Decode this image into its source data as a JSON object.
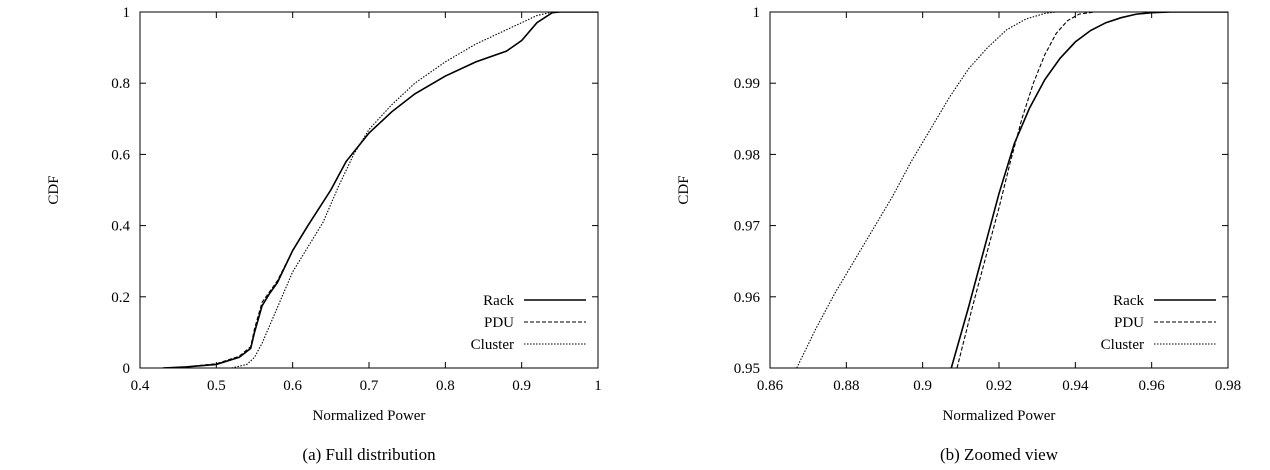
{
  "chart_data": [
    {
      "type": "line",
      "caption": "(a) Full distribution",
      "xlabel": "Normalized Power",
      "ylabel": "CDF",
      "xlim": [
        0.4,
        1.0
      ],
      "ylim": [
        0,
        1
      ],
      "xticks": [
        0.4,
        0.5,
        0.6,
        0.7,
        0.8,
        0.9,
        1.0
      ],
      "xtick_labels": [
        "0.4",
        "0.5",
        "0.6",
        "0.7",
        "0.8",
        "0.9",
        "1"
      ],
      "yticks": [
        0,
        0.2,
        0.4,
        0.6,
        0.8,
        1.0
      ],
      "ytick_labels": [
        "0",
        "0.2",
        "0.4",
        "0.6",
        "0.8",
        "1"
      ],
      "grid": false,
      "legend_position": "bottom-right",
      "series": [
        {
          "name": "Rack",
          "style": "solid",
          "x": [
            0.43,
            0.46,
            0.5,
            0.53,
            0.545,
            0.55,
            0.56,
            0.57,
            0.58,
            0.6,
            0.62,
            0.65,
            0.67,
            0.7,
            0.73,
            0.76,
            0.8,
            0.84,
            0.88,
            0.9,
            0.92,
            0.94,
            0.95,
            1.0
          ],
          "y": [
            0.0,
            0.003,
            0.01,
            0.03,
            0.055,
            0.1,
            0.175,
            0.21,
            0.24,
            0.33,
            0.4,
            0.5,
            0.58,
            0.66,
            0.72,
            0.77,
            0.82,
            0.86,
            0.89,
            0.92,
            0.97,
            0.998,
            1.0,
            1.0
          ]
        },
        {
          "name": "PDU",
          "style": "dashed",
          "x": [
            0.43,
            0.46,
            0.5,
            0.53,
            0.545,
            0.55,
            0.56,
            0.57,
            0.58,
            0.6,
            0.62,
            0.65,
            0.67,
            0.7,
            0.73,
            0.76,
            0.8,
            0.84,
            0.88,
            0.9,
            0.92,
            0.94,
            0.95,
            1.0
          ],
          "y": [
            0.0,
            0.003,
            0.012,
            0.033,
            0.06,
            0.11,
            0.185,
            0.215,
            0.245,
            0.33,
            0.4,
            0.5,
            0.58,
            0.66,
            0.72,
            0.77,
            0.82,
            0.86,
            0.89,
            0.92,
            0.97,
            0.998,
            1.0,
            1.0
          ]
        },
        {
          "name": "Cluster",
          "style": "dotted",
          "x": [
            0.52,
            0.54,
            0.55,
            0.56,
            0.57,
            0.58,
            0.6,
            0.62,
            0.64,
            0.66,
            0.68,
            0.7,
            0.73,
            0.76,
            0.8,
            0.84,
            0.88,
            0.9,
            0.92,
            0.94,
            1.0
          ],
          "y": [
            0.0,
            0.01,
            0.03,
            0.07,
            0.12,
            0.17,
            0.27,
            0.34,
            0.41,
            0.51,
            0.6,
            0.67,
            0.74,
            0.8,
            0.86,
            0.91,
            0.95,
            0.97,
            0.99,
            1.0,
            1.0
          ]
        }
      ]
    },
    {
      "type": "line",
      "caption": "(b) Zoomed view",
      "xlabel": "Normalized Power",
      "ylabel": "CDF",
      "xlim": [
        0.86,
        0.98
      ],
      "ylim": [
        0.95,
        1.0
      ],
      "xticks": [
        0.86,
        0.88,
        0.9,
        0.92,
        0.94,
        0.96,
        0.98
      ],
      "xtick_labels": [
        "0.86",
        "0.88",
        "0.9",
        "0.92",
        "0.94",
        "0.96",
        "0.98"
      ],
      "yticks": [
        0.95,
        0.96,
        0.97,
        0.98,
        0.99,
        1.0
      ],
      "ytick_labels": [
        "0.95",
        "0.96",
        "0.97",
        "0.98",
        "0.99",
        "1"
      ],
      "grid": false,
      "legend_position": "bottom-right",
      "series": [
        {
          "name": "Rack",
          "style": "solid",
          "x": [
            0.9075,
            0.912,
            0.916,
            0.92,
            0.924,
            0.928,
            0.932,
            0.936,
            0.94,
            0.944,
            0.948,
            0.952,
            0.956,
            0.96,
            0.965,
            0.98
          ],
          "y": [
            0.95,
            0.9585,
            0.9665,
            0.9745,
            0.9815,
            0.9865,
            0.9905,
            0.9935,
            0.9958,
            0.9974,
            0.9985,
            0.9992,
            0.9997,
            0.9999,
            1.0,
            1.0
          ]
        },
        {
          "name": "PDU",
          "style": "dashed",
          "x": [
            0.909,
            0.913,
            0.917,
            0.92,
            0.923,
            0.926,
            0.929,
            0.932,
            0.935,
            0.938,
            0.941,
            0.945,
            0.98
          ],
          "y": [
            0.95,
            0.9585,
            0.9665,
            0.9725,
            0.979,
            0.985,
            0.99,
            0.994,
            0.997,
            0.9988,
            0.9997,
            1.0,
            1.0
          ]
        },
        {
          "name": "Cluster",
          "style": "dotted",
          "x": [
            0.867,
            0.872,
            0.877,
            0.882,
            0.887,
            0.892,
            0.897,
            0.902,
            0.907,
            0.912,
            0.917,
            0.922,
            0.927,
            0.932,
            0.935,
            0.98
          ],
          "y": [
            0.95,
            0.9555,
            0.9605,
            0.965,
            0.9695,
            0.974,
            0.979,
            0.9835,
            0.988,
            0.992,
            0.995,
            0.9975,
            0.999,
            0.9998,
            1.0,
            1.0
          ]
        }
      ]
    }
  ]
}
